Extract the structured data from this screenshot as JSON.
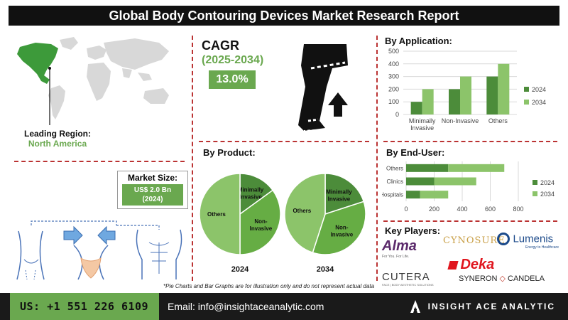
{
  "header": {
    "title": "Global Body Contouring Devices Market Research Report"
  },
  "region": {
    "label": "Leading Region:",
    "value": "North America"
  },
  "cagr": {
    "title": "CAGR",
    "years": "(2025-2034)",
    "value": "13.0%"
  },
  "market_size": {
    "label": "Market Size:",
    "value_line1": "US$ 2.0 Bn",
    "value_line2": "(2024)"
  },
  "application": {
    "heading": "By Application:"
  },
  "product": {
    "heading": "By Product:"
  },
  "enduser": {
    "heading": "By  End-User:"
  },
  "players": {
    "heading": "Key Players:",
    "logos": [
      "Alma",
      "CYNOSURE",
      "Lumenis",
      "Deka",
      "CUTERA",
      "SYNERON",
      "CANDELA"
    ],
    "alma_tagline": "For You. For Life.",
    "lumenis_tagline": "Energy to Healthcare",
    "cutera_tagline": "FACE | BODY AESTHETIC SOLUTIONS"
  },
  "footnote": "*Pie Charts and Bar Graphs are for illustration only and do not represent actual data",
  "footer": {
    "phone": "US: +1 551 226 6109",
    "email": "Email: info@insightaceanalytic.com",
    "brand": "INSIGHT ACE ANALYTIC"
  },
  "colors": {
    "dark_green": "#4c8c3a",
    "light_green": "#8cc46a",
    "accent_green": "#6aa84f",
    "divider_red": "#b33333",
    "dark": "#111111"
  },
  "chart_data": [
    {
      "type": "bar",
      "categories": [
        "Minimally Invasive",
        "Non-Invasive",
        "Others"
      ],
      "series": [
        {
          "name": "2024",
          "values": [
            100,
            200,
            300
          ]
        },
        {
          "name": "2034",
          "values": [
            200,
            300,
            400
          ]
        }
      ],
      "ylim": [
        0,
        500
      ],
      "yticks": [
        0,
        100,
        200,
        300,
        400,
        500
      ],
      "grid": true,
      "legend": "right"
    },
    {
      "type": "bar",
      "orientation": "horizontal",
      "stacked": true,
      "categories": [
        "Hospitals",
        "Clinics",
        "Others"
      ],
      "series": [
        {
          "name": "2024",
          "values": [
            100,
            200,
            300
          ]
        },
        {
          "name": "2034",
          "values": [
            200,
            300,
            400
          ]
        }
      ],
      "xlim": [
        0,
        800
      ],
      "xticks": [
        0,
        200,
        400,
        600,
        800
      ],
      "grid": true,
      "legend": "right"
    },
    {
      "type": "pie",
      "label": "2024",
      "slices": [
        {
          "name": "Minimally Invasive",
          "value": 15
        },
        {
          "name": "Non-Invasive",
          "value": 35
        },
        {
          "name": "Others",
          "value": 50
        }
      ]
    },
    {
      "type": "pie",
      "label": "2034",
      "slices": [
        {
          "name": "Minimally Invasive",
          "value": 20
        },
        {
          "name": "Non-Invasive",
          "value": 35
        },
        {
          "name": "Others",
          "value": 45
        }
      ]
    }
  ]
}
